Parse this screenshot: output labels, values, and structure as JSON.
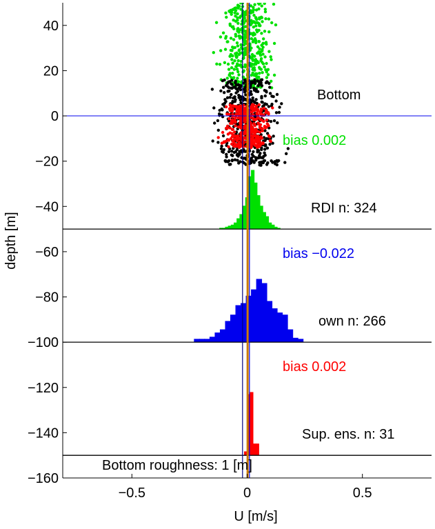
{
  "chart_data": {
    "type": "histogram-scatter",
    "xlabel": "U [m/s]",
    "ylabel": "depth [m]",
    "xlim": [
      -0.8,
      0.8
    ],
    "ylim": [
      -160,
      50
    ],
    "xticks": [
      -0.5,
      0,
      0.5
    ],
    "xtick_labels": [
      "−0.5",
      "0",
      "0.5"
    ],
    "yticks": [
      40,
      20,
      0,
      -20,
      -40,
      -60,
      -80,
      -100,
      -120,
      -140,
      -160
    ],
    "ytick_labels": [
      "40",
      "20",
      "0",
      "−20",
      "−40",
      "−60",
      "−80",
      "−100",
      "−120",
      "−140",
      "−160"
    ],
    "grid": false,
    "colors": {
      "green": "#00e000",
      "black": "#000000",
      "red": "#ff0000",
      "blue": "#0000ee",
      "orange": "#cc7a00",
      "navy": "#000080"
    },
    "zero_line_depth": 0,
    "vertical_lines": [
      {
        "x": -0.02,
        "color": "navy"
      },
      {
        "x": 0.002,
        "color": "orange"
      },
      {
        "x": 0.01,
        "color": "blue"
      }
    ],
    "scatter_series": [
      {
        "color": "green",
        "depth_range": [
          12,
          50
        ],
        "x_center": 0.0,
        "x_spread": 0.1,
        "count": 420
      },
      {
        "color": "black",
        "depth_range": [
          -22,
          16
        ],
        "x_center": 0.0,
        "x_spread": 0.12,
        "count": 520
      },
      {
        "color": "red",
        "depth_range": [
          -14,
          5
        ],
        "x_center": 0.0,
        "x_spread": 0.09,
        "count": 380
      }
    ],
    "histograms": [
      {
        "name": "RDI",
        "color": "green",
        "baseline": -50,
        "bin_width": 0.0125,
        "bins_start": -0.12,
        "heights": [
          0.5,
          0.5,
          1,
          1.5,
          2,
          3,
          5,
          7,
          11,
          15,
          25,
          28,
          22,
          16,
          11,
          8,
          6,
          3,
          2,
          1,
          0.5
        ]
      },
      {
        "name": "own",
        "color": "blue",
        "baseline": -100,
        "bin_width": 0.0225,
        "bins_start": -0.23,
        "heights": [
          1.5,
          1.5,
          1.5,
          2.5,
          4.5,
          6,
          10,
          13,
          17.5,
          18.5,
          22,
          25,
          30,
          28,
          19.5,
          16,
          14,
          13,
          6,
          2,
          1.5
        ]
      },
      {
        "name": "Sup. ens.",
        "color": "red",
        "baseline": -150,
        "bin_width": 0.0125,
        "bins_start": -0.0125,
        "heights": [
          1.8,
          29,
          30,
          5.5,
          5.5
        ]
      }
    ],
    "texts": {
      "bottom_label": "Bottom",
      "bias_green": "bias  0.002",
      "rdi_n": "RDI n: 324",
      "bias_blue": "bias −0.022",
      "own_n": "own n: 266",
      "bias_red": "bias  0.002",
      "sup_n": "Sup. ens. n: 31",
      "roughness": "Bottom roughness: 1 [m]"
    }
  }
}
